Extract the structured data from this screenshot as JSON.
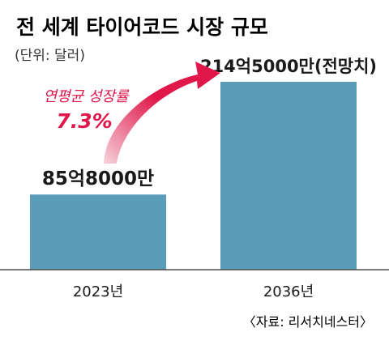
{
  "chart_data": {
    "type": "bar",
    "title": "전 세계 타이어코드 시장 규모",
    "subtitle": "(단위: 달러)",
    "categories": [
      "2023년",
      "2036년"
    ],
    "values": [
      8580000000,
      21450000000
    ],
    "value_labels": [
      "85억8000만",
      "214억5000만(전망치)"
    ],
    "annotation": {
      "line1": "연평균 성장률",
      "line2": "7.3%"
    },
    "source": "〈자료: 리서치네스터〉",
    "ylim": [
      0,
      21450000000
    ],
    "grid": false,
    "legend": "none"
  },
  "colors": {
    "bar": "#5b9db8",
    "accent": "#e0174a",
    "text": "#1a1a1a",
    "axis": "#4d4d4d",
    "arrow_tail": "#f6d2da"
  }
}
